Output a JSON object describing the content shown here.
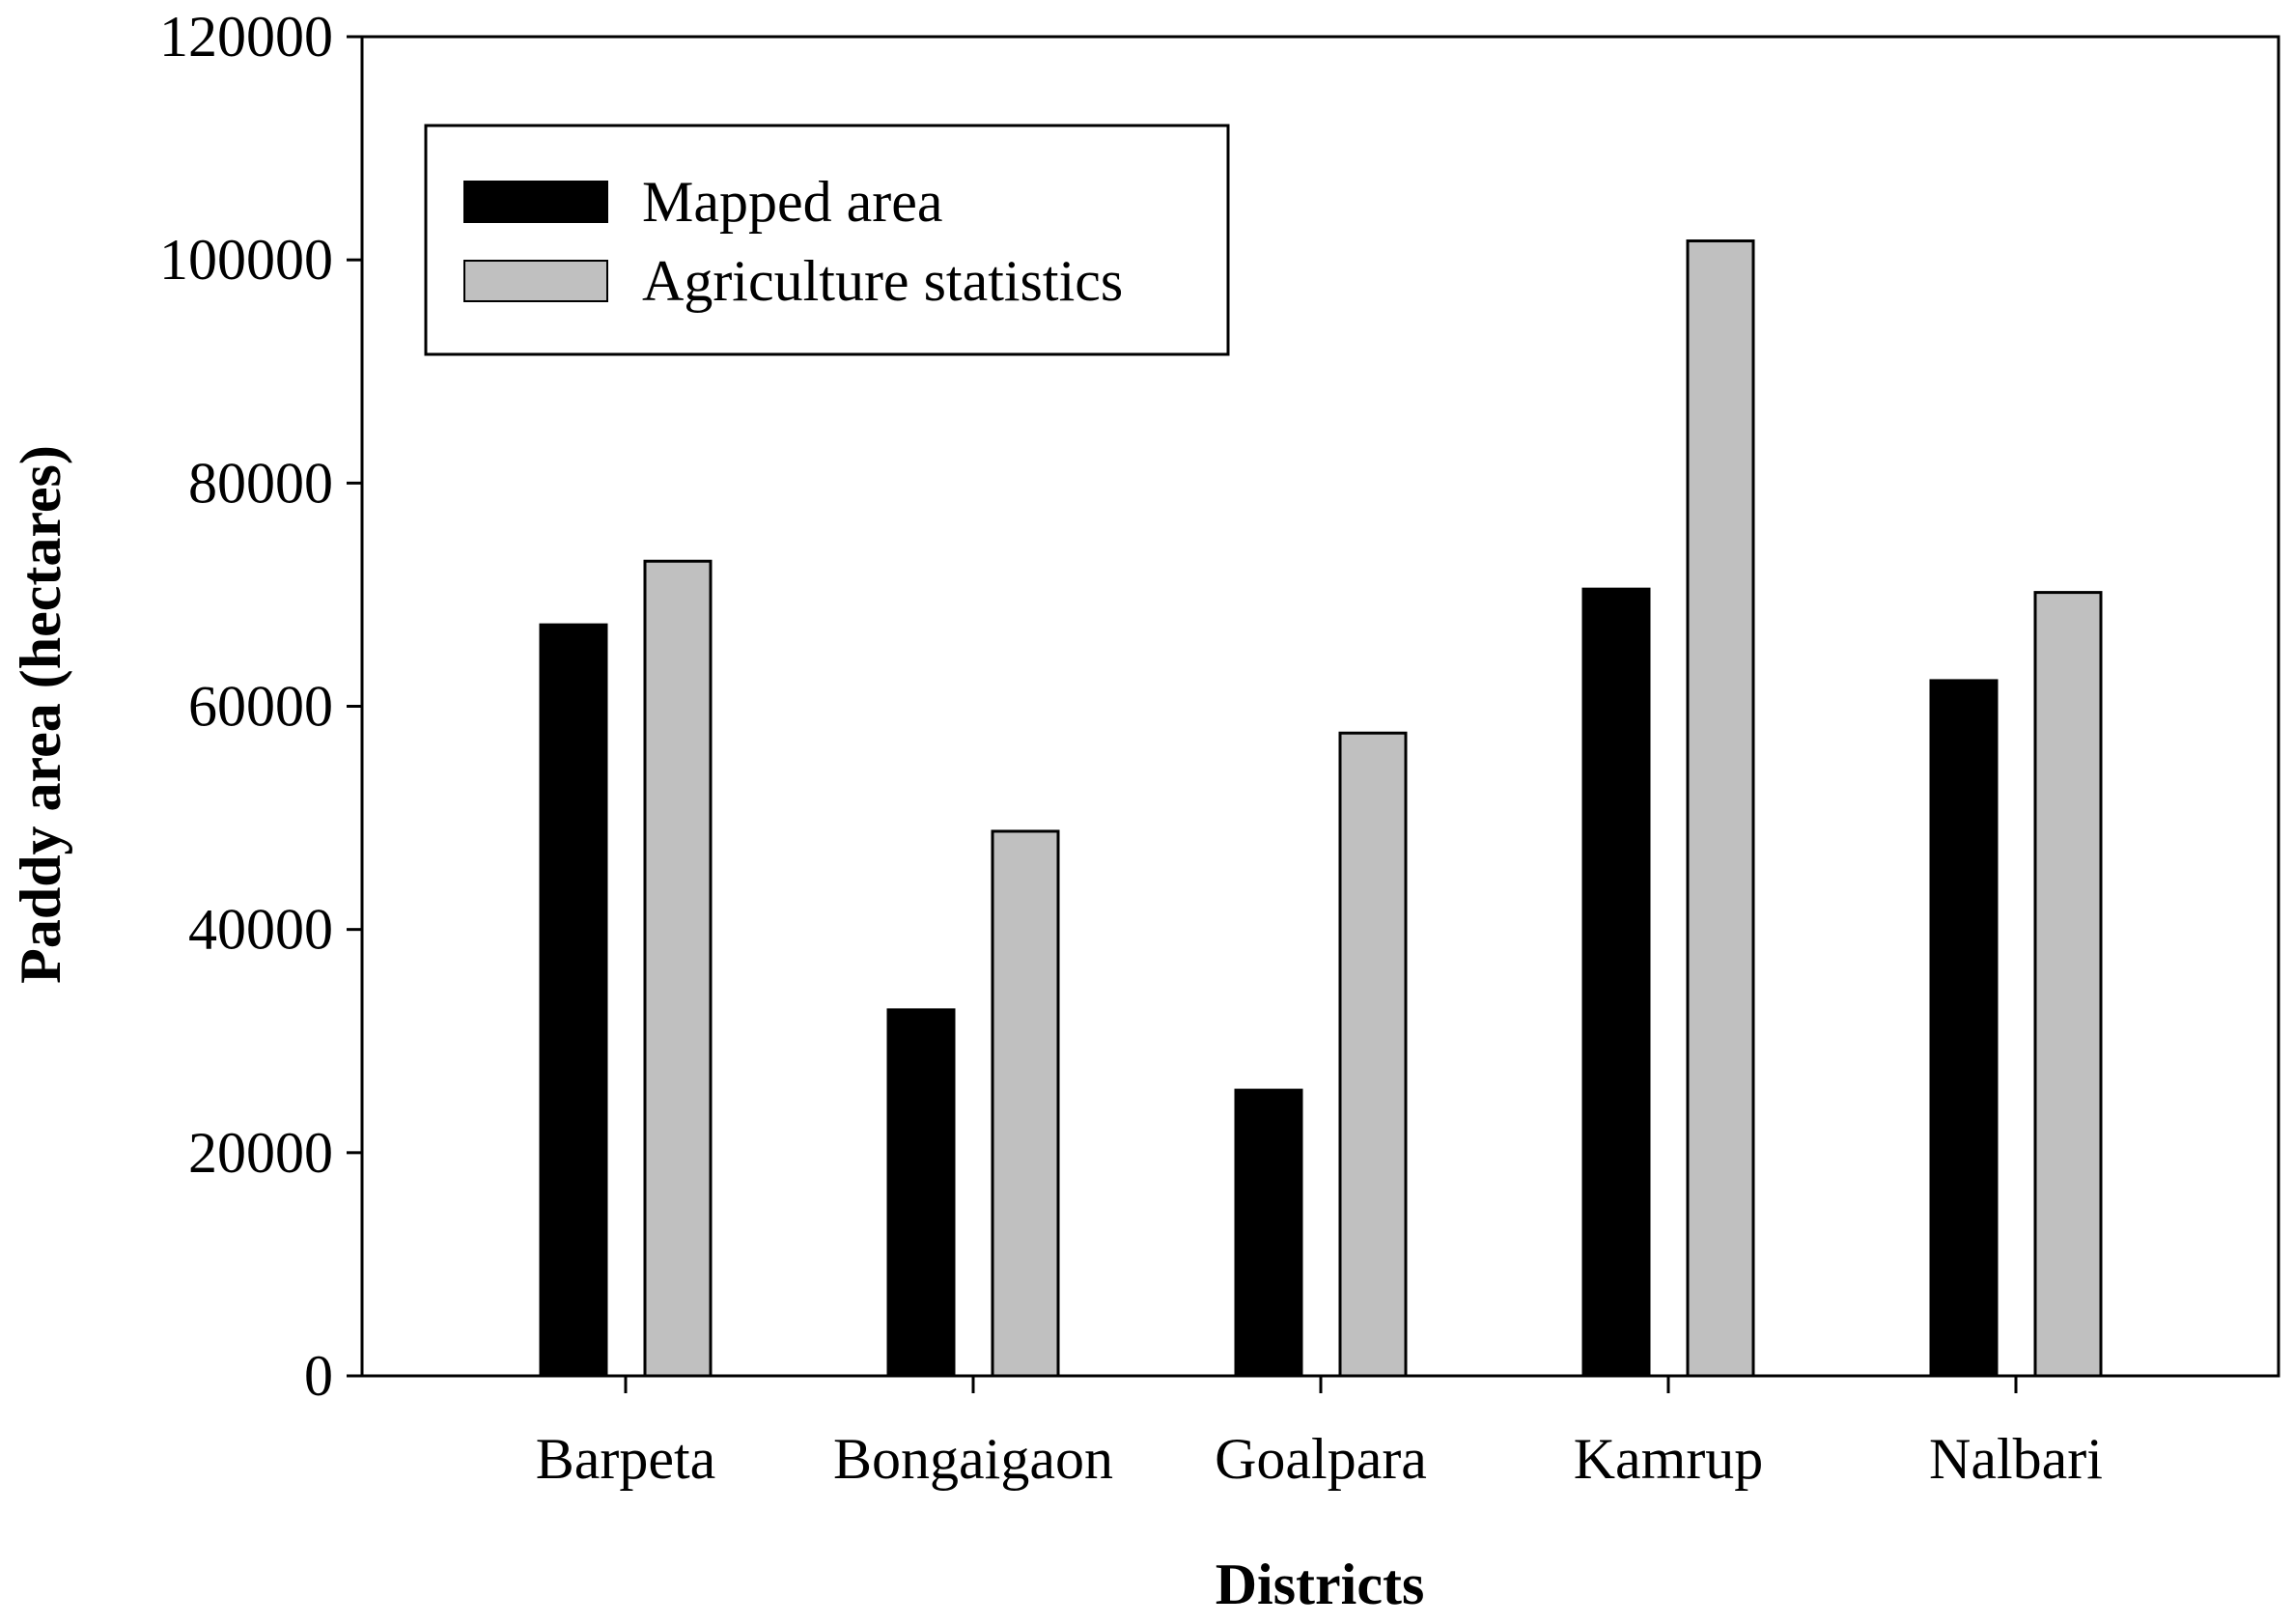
{
  "chart_data": {
    "type": "bar",
    "title": "",
    "xlabel": "Districts",
    "ylabel": "Paddy area (hectares)",
    "categories": [
      "Barpeta",
      "Bongaigaon",
      "Goalpara",
      "Kamrup",
      "Nalbari"
    ],
    "series": [
      {
        "name": "Mapped area",
        "values": [
          67300,
          32800,
          25600,
          70500,
          62300
        ],
        "color": "#000000"
      },
      {
        "name": "Agriculture statistics",
        "values": [
          73000,
          48800,
          57600,
          101700,
          70200
        ],
        "color": "#c0c0c0"
      }
    ],
    "ylim": [
      0,
      120000
    ],
    "yticks": [
      "0",
      "20000",
      "40000",
      "60000",
      "80000",
      "100000",
      "120000"
    ],
    "legend_position": "top-left",
    "grid": false
  }
}
